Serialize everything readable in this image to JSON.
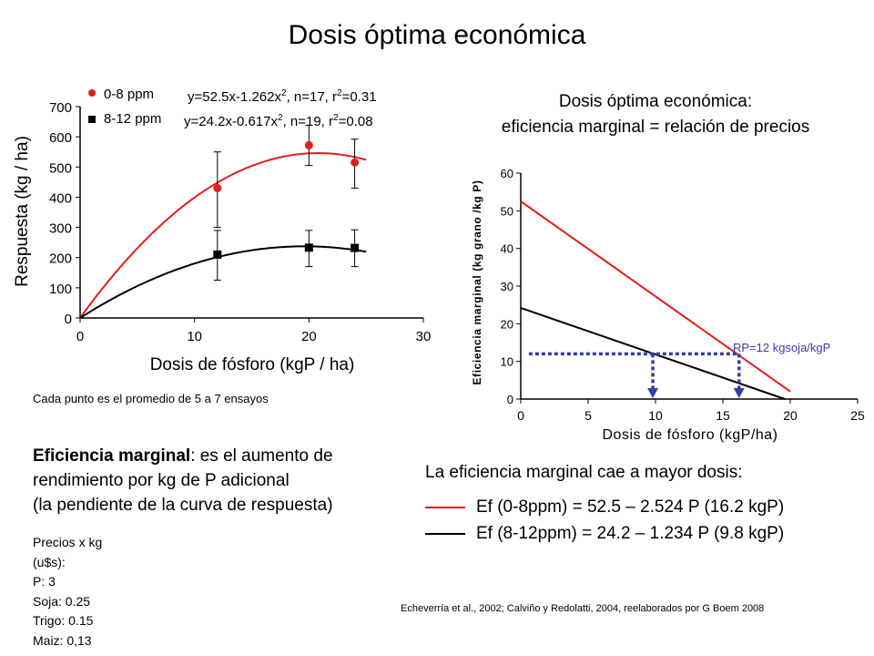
{
  "title": "Dosis óptima económica",
  "right_heading": {
    "line1": "Dosis óptima económica:",
    "line2": "eficiencia marginal = relación de precios"
  },
  "footnote": "Cada punto es el promedio de 5 a 7 ensayos",
  "definition": {
    "term": "Eficiencia marginal",
    "rest": ": es el aumento de",
    "line2": "rendimiento por kg de P adicional",
    "line3": "(la pendiente de la curva de respuesta)"
  },
  "prices": {
    "heading_line1": "Precios x kg",
    "heading_line2": "(u$s):",
    "items": [
      "P: 3",
      "Soja: 0.25",
      "Trigo: 0.15",
      "Maiz: 0,13"
    ]
  },
  "falls_text": "La eficiencia marginal cae a mayor dosis:",
  "equations": [
    {
      "text": "Ef (0-8ppm) = 52.5 – 2.524 P (16.2 kgP)",
      "color": "#e31e1e"
    },
    {
      "text": "Ef (8-12ppm) = 24.2 – 1.234 P (9.8 kgP)",
      "color": "#000000"
    }
  ],
  "citation": "Echeverría et al., 2002; Calviño y Redolatti, 2004, reelaborados por G Boem 2008",
  "chart_data": [
    {
      "type": "scatter",
      "xlabel": "Dosis de fósforo (kgP / ha)",
      "ylabel": "Respuesta (kg / ha)",
      "xlim": [
        0,
        30
      ],
      "ylim": [
        0,
        700
      ],
      "xticks": [
        0,
        10,
        20,
        30
      ],
      "yticks": [
        0,
        100,
        200,
        300,
        400,
        500,
        600,
        700
      ],
      "legend_position": "top",
      "series": [
        {
          "name": "0-8 ppm",
          "equation": {
            "prefix": "y=52.5x-1.262x",
            "exp": "2",
            "mid": ", n=17, r",
            "exp2": "2",
            "suffix": "=0.31"
          },
          "color": "#e31e1e",
          "marker": "circle",
          "points": [
            {
              "x": 12,
              "y": 430,
              "low": 300,
              "high": 550
            },
            {
              "x": 20,
              "y": 572,
              "low": 505,
              "high": 638
            },
            {
              "x": 24,
              "y": 515,
              "low": 430,
              "high": 592
            }
          ],
          "fit": {
            "a": 52.5,
            "b": -1.262,
            "x_end": 25
          }
        },
        {
          "name": "8-12 ppm",
          "equation": {
            "prefix": "y=24.2x-0.617x",
            "exp": "2",
            "mid": ", n=19, r",
            "exp2": "2",
            "suffix": "=0.08"
          },
          "color": "#000000",
          "marker": "square",
          "points": [
            {
              "x": 12,
              "y": 210,
              "low": 125,
              "high": 290
            },
            {
              "x": 20,
              "y": 233,
              "low": 170,
              "high": 290
            },
            {
              "x": 24,
              "y": 232,
              "low": 170,
              "high": 292
            }
          ],
          "fit": {
            "a": 24.2,
            "b": -0.617,
            "x_end": 25
          }
        }
      ]
    },
    {
      "type": "line",
      "xlabel": "Dosis de fósforo (kgP/ha)",
      "ylabel": "Eficiencia marginal (kg grano /kg P)",
      "xlim": [
        0,
        25
      ],
      "ylim": [
        0,
        60
      ],
      "xticks": [
        0,
        5,
        10,
        15,
        20,
        25
      ],
      "yticks": [
        0,
        10,
        20,
        30,
        40,
        50,
        60
      ],
      "series": [
        {
          "color": "#e31e1e",
          "x": [
            0,
            20
          ],
          "y": [
            52.5,
            2.02
          ]
        },
        {
          "color": "#000000",
          "x": [
            0,
            19.6
          ],
          "y": [
            24.2,
            0.0
          ]
        }
      ],
      "price_ratio": {
        "label": "RP=12 kgsoja/kgP",
        "value": 12,
        "color": "#3a3ab0"
      },
      "optimal_doses": [
        9.8,
        16.2
      ]
    }
  ]
}
